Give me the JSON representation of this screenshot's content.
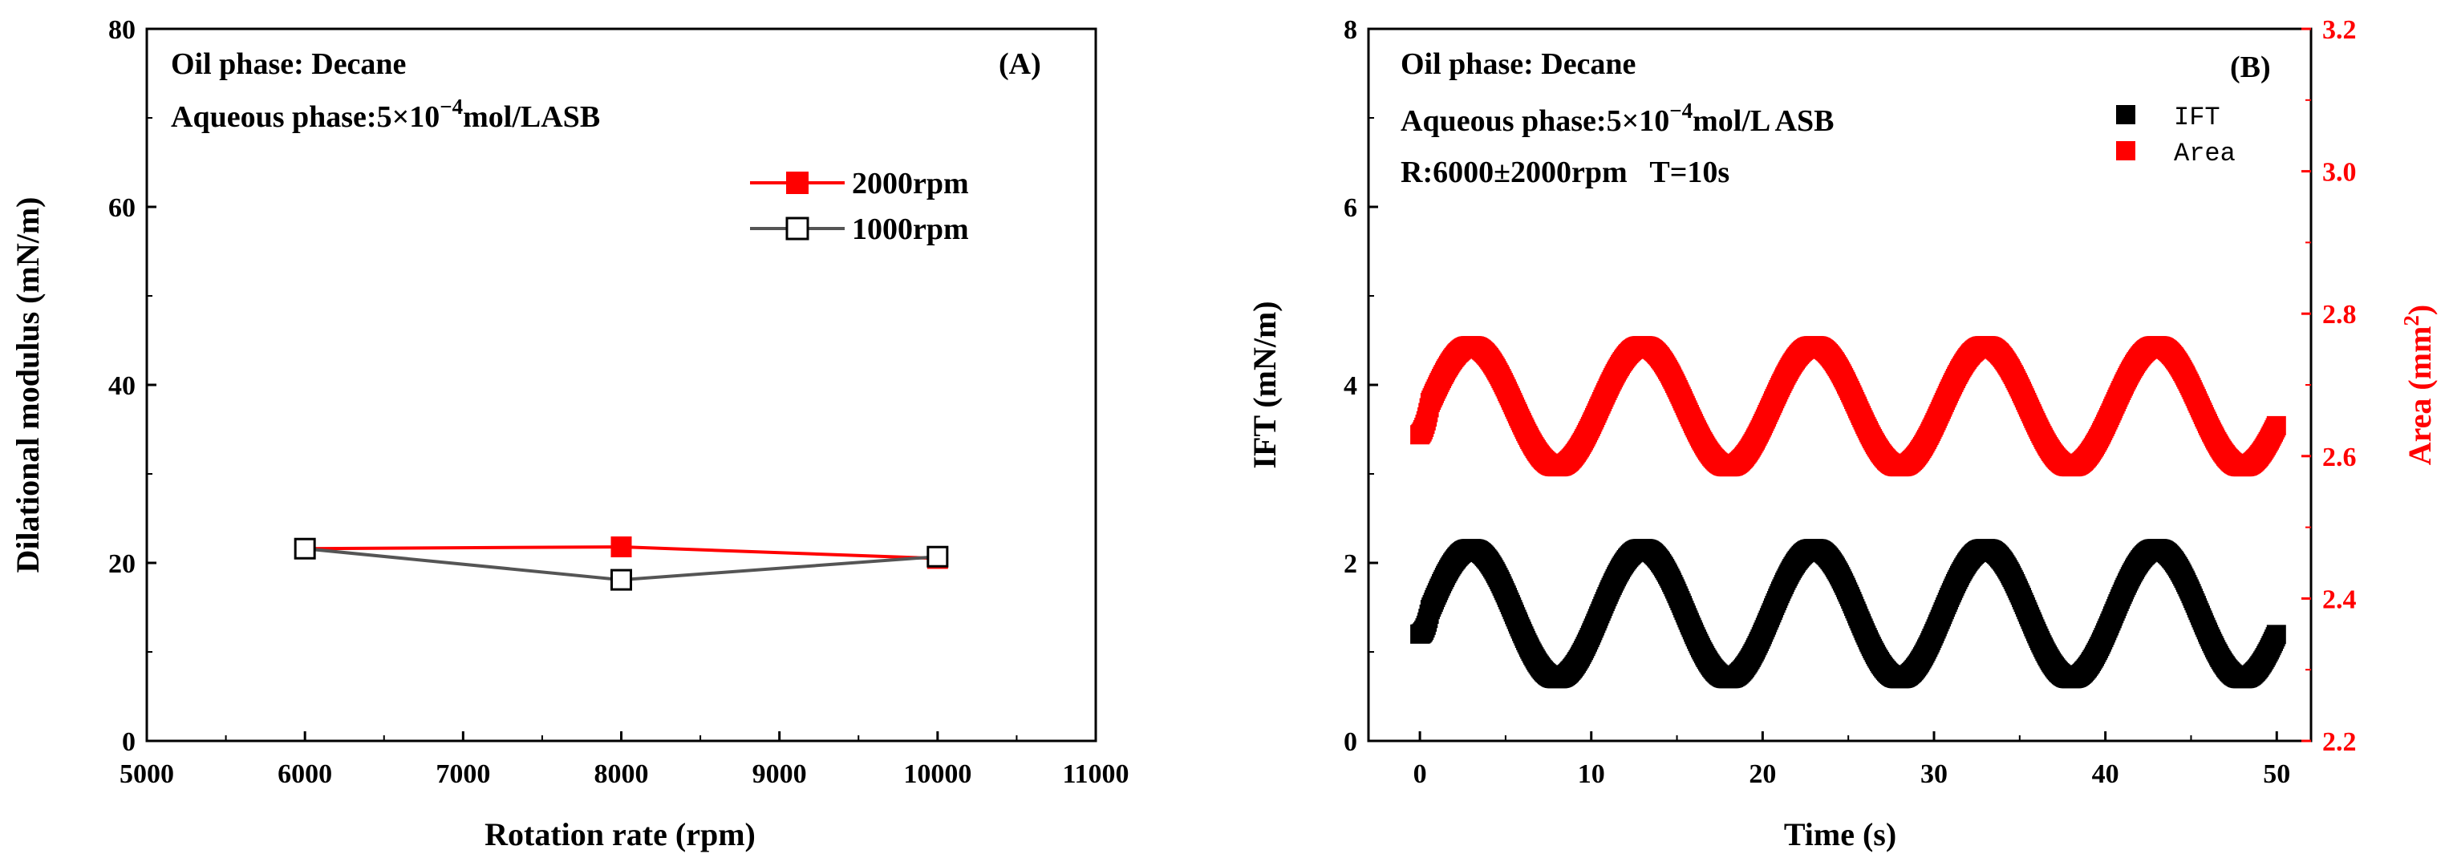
{
  "chart_data": [
    {
      "panel_label": "(A)",
      "type": "line",
      "xlabel": "Rotation rate (rpm)",
      "ylabel": "Dilational modulus (mN/m)",
      "xlim": [
        5000,
        11000
      ],
      "ylim": [
        0,
        80
      ],
      "xticks": [
        5000,
        6000,
        7000,
        8000,
        9000,
        10000,
        11000
      ],
      "yticks": [
        0,
        20,
        40,
        60,
        80
      ],
      "annotations": {
        "line1": "Oil phase: Decane",
        "line2_prefix": "Aqueous phase:5×10",
        "line2_exp": "−4",
        "line2_suffix": "mol/LASB"
      },
      "series": [
        {
          "name": "2000rpm",
          "color": "#ff0000",
          "marker": "filled-square",
          "x": [
            6000,
            8000,
            10000
          ],
          "y": [
            21.6,
            21.8,
            20.5
          ]
        },
        {
          "name": "1000rpm",
          "color": "#555555",
          "marker": "open-square",
          "x": [
            6000,
            8000,
            10000
          ],
          "y": [
            21.6,
            18.1,
            20.7
          ]
        }
      ],
      "legend_position": "top-right"
    },
    {
      "panel_label": "(B)",
      "type": "scatter",
      "xlabel": "Time (s)",
      "ylabel": "IFT (mN/m)",
      "y2label_prefix": "Area (mm",
      "y2label_sup": "2",
      "y2label_suffix": ")",
      "xlim": [
        -3,
        52
      ],
      "ylim": [
        0,
        8
      ],
      "y2lim": [
        2.2,
        3.2
      ],
      "xticks": [
        0,
        10,
        20,
        30,
        40,
        50
      ],
      "yticks": [
        0,
        2,
        4,
        6,
        8
      ],
      "y2ticks": [
        "2.2",
        "2.4",
        "2.6",
        "2.8",
        "3.0",
        "3.2"
      ],
      "annotations": {
        "line1": "Oil phase: Decane",
        "line2_prefix": "Aqueous phase:5×10",
        "line2_exp": "−4",
        "line2_suffix": "mol/L ASB",
        "line3": "R:6000±2000rpm   T=10s"
      },
      "series": [
        {
          "name": "IFT",
          "color": "#000000",
          "axis": "left",
          "period_s": 10,
          "mean": 1.43,
          "amplitude": 0.73,
          "t_start": 0,
          "t_end": 50,
          "y_at_t0": 1.2,
          "peaks_at_s": [
            3,
            13,
            23,
            33,
            43
          ]
        },
        {
          "name": "Area",
          "color": "#ff0000",
          "axis": "right",
          "period_s": 10,
          "mean": 2.67,
          "amplitude": 0.085,
          "t_start": 0,
          "t_end": 50,
          "y_at_t0": 2.63,
          "peaks_at_s": [
            3,
            13,
            23,
            33,
            43
          ]
        }
      ],
      "legend_position": "top-right"
    }
  ]
}
